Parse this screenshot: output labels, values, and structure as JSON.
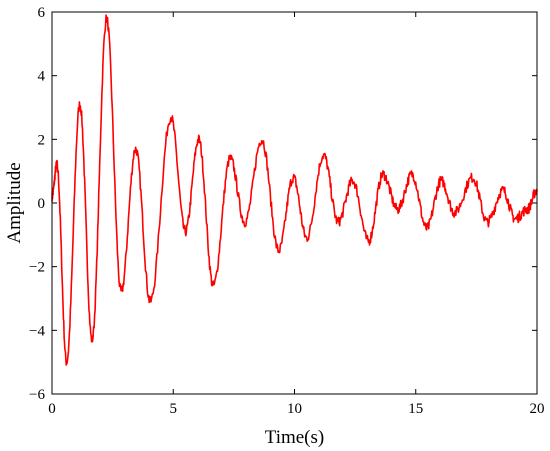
{
  "chart_data": {
    "type": "line",
    "title": "",
    "xlabel": "Time(s)",
    "ylabel": "Amplitude",
    "xlim": [
      0,
      20
    ],
    "ylim": [
      -6,
      6
    ],
    "xticks": [
      0,
      5,
      10,
      15,
      20
    ],
    "yticks": [
      -6,
      -4,
      -2,
      0,
      2,
      4,
      6
    ],
    "xtick_labels": [
      "0",
      "5",
      "10",
      "15",
      "20"
    ],
    "ytick_labels": [
      "−6",
      "−4",
      "−2",
      "0",
      "2",
      "4",
      "6"
    ],
    "grid": false,
    "legend": "none",
    "series": [
      {
        "color": "#ff0000",
        "noisy": true,
        "x": [
          0,
          0.2,
          0.6,
          1.15,
          1.65,
          2.25,
          2.85,
          3.45,
          4.05,
          4.9,
          5.5,
          6.05,
          6.65,
          7.35,
          7.95,
          8.65,
          9.35,
          9.95,
          10.5,
          11.2,
          11.8,
          12.4,
          13.05,
          13.65,
          14.25,
          14.85,
          15.45,
          16.05,
          16.6,
          17.35,
          17.95,
          18.6,
          19.1,
          19.6,
          20.0
        ],
        "y": [
          0.2,
          1.2,
          -5.0,
          3.1,
          -4.3,
          5.8,
          -2.8,
          1.7,
          -3.1,
          2.7,
          -0.9,
          2.0,
          -2.6,
          1.4,
          -0.6,
          2.0,
          -1.5,
          0.8,
          -1.1,
          1.5,
          -0.6,
          0.7,
          -1.2,
          0.9,
          -0.2,
          0.9,
          -0.8,
          0.7,
          -0.3,
          0.8,
          -0.6,
          0.4,
          -0.5,
          -0.2,
          0.4
        ]
      }
    ]
  }
}
